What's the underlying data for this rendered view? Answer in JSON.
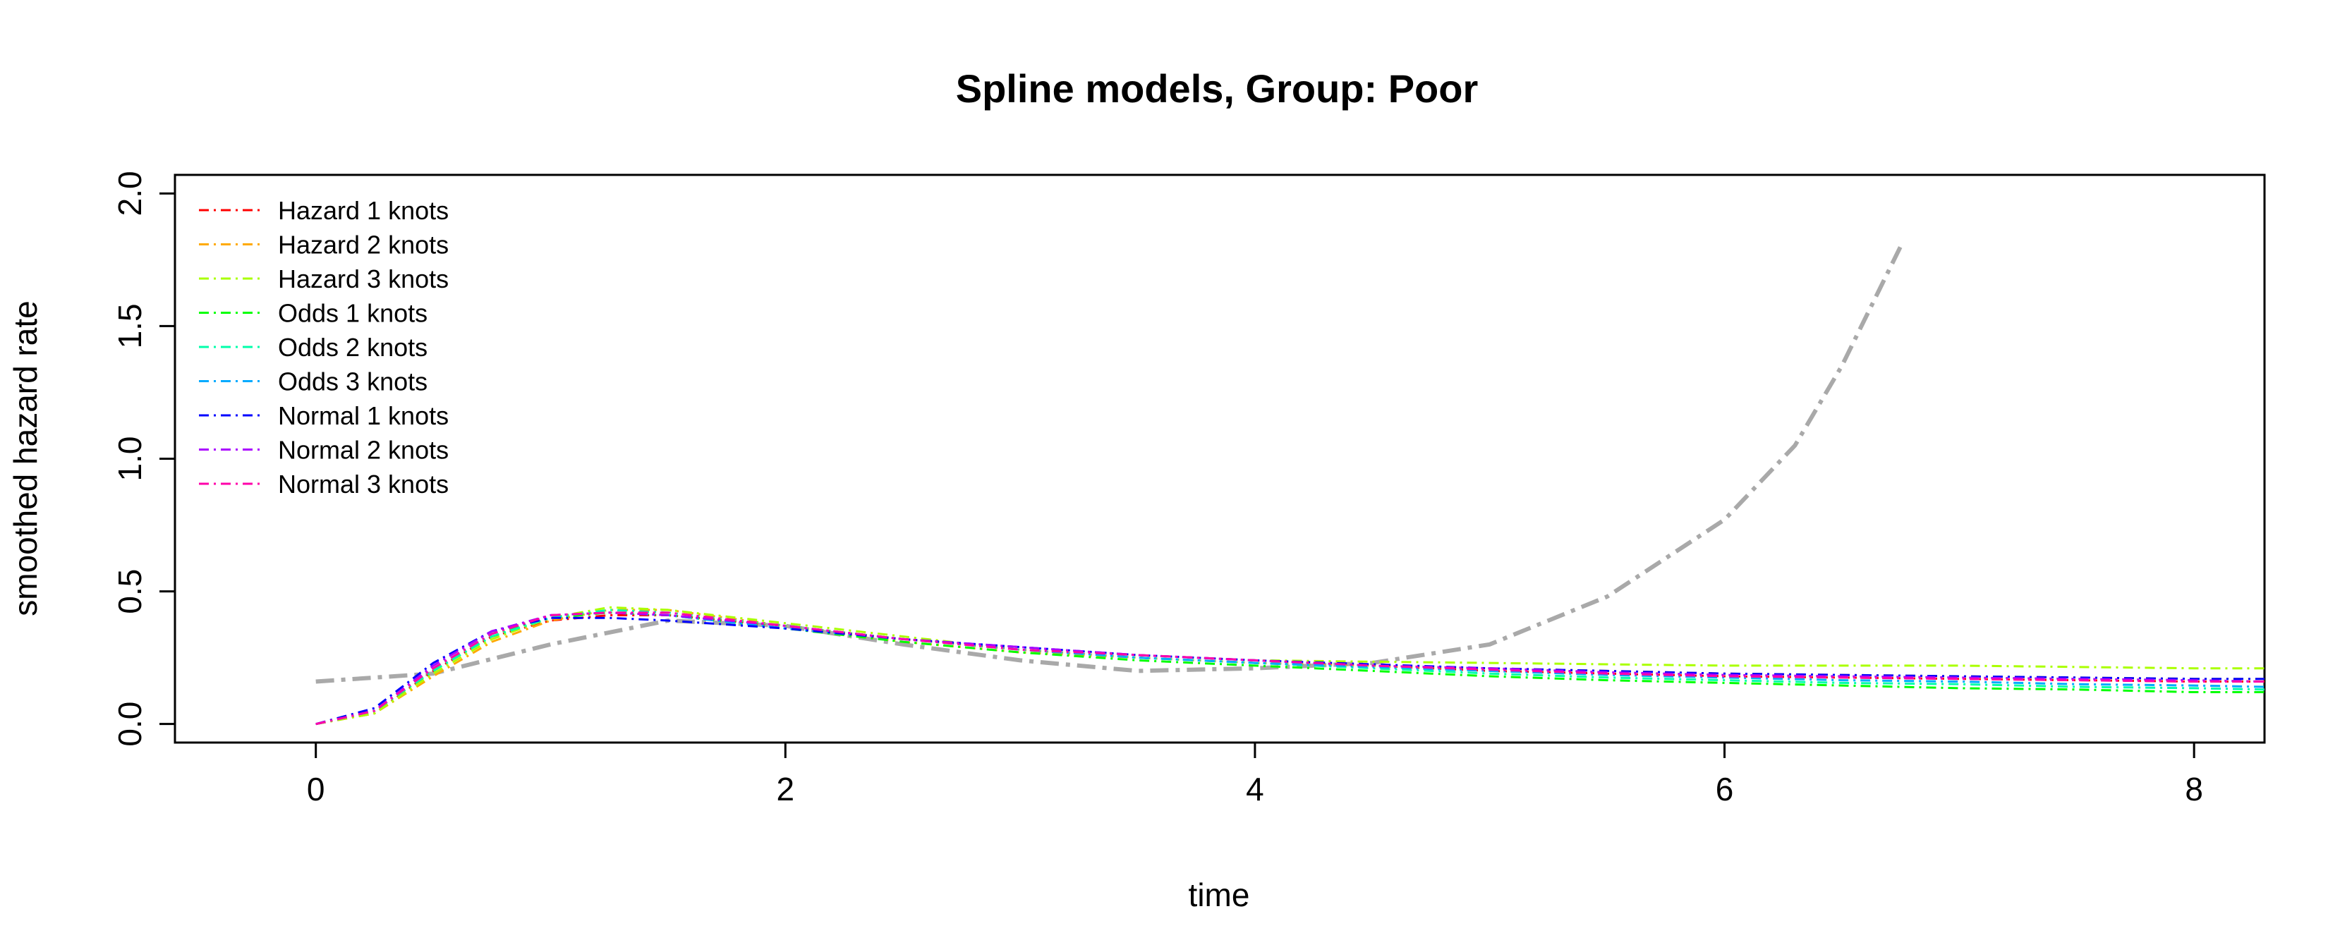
{
  "chart_data": {
    "type": "line",
    "title": "Spline models, Group: Poor",
    "xlabel": "time",
    "ylabel": "smoothed hazard rate",
    "xlim": [
      -0.6,
      8.3
    ],
    "ylim": [
      -0.07,
      2.07
    ],
    "xticks": [
      0,
      2,
      4,
      6,
      8
    ],
    "yticks": [
      0.0,
      0.5,
      1.0,
      1.5,
      2.0
    ],
    "ytick_labels": [
      "0.0",
      "0.5",
      "1.0",
      "1.5",
      "2.0"
    ],
    "grid": false,
    "legend_position": "top-left",
    "series": [
      {
        "name": "Hazard 1 knots",
        "color": "#ff0000",
        "x": [
          0,
          0.25,
          0.5,
          0.75,
          1.0,
          1.25,
          1.5,
          2.0,
          2.5,
          3.0,
          3.5,
          4.0,
          4.5,
          5.0,
          5.5,
          6.0,
          6.5,
          7.0,
          7.5,
          8.0,
          8.3
        ],
        "y": [
          0.0,
          0.04,
          0.2,
          0.33,
          0.39,
          0.41,
          0.41,
          0.37,
          0.32,
          0.28,
          0.25,
          0.23,
          0.22,
          0.2,
          0.19,
          0.18,
          0.175,
          0.17,
          0.165,
          0.16,
          0.16
        ]
      },
      {
        "name": "Hazard 2 knots",
        "color": "#ffaa00",
        "x": [
          0,
          0.25,
          0.5,
          0.75,
          1.0,
          1.25,
          1.5,
          2.0,
          2.5,
          3.0,
          3.5,
          4.0,
          4.5,
          5.0,
          5.5,
          6.0,
          6.5,
          7.0,
          7.5,
          8.0,
          8.3
        ],
        "y": [
          0.0,
          0.04,
          0.18,
          0.31,
          0.39,
          0.43,
          0.43,
          0.37,
          0.31,
          0.27,
          0.25,
          0.23,
          0.22,
          0.21,
          0.2,
          0.19,
          0.185,
          0.18,
          0.175,
          0.17,
          0.17
        ]
      },
      {
        "name": "Hazard 3 knots",
        "color": "#aaff00",
        "x": [
          0,
          0.25,
          0.5,
          0.75,
          1.0,
          1.25,
          1.5,
          2.0,
          2.5,
          3.0,
          3.5,
          4.0,
          4.5,
          5.0,
          5.5,
          6.0,
          6.5,
          7.0,
          7.5,
          8.0,
          8.3
        ],
        "y": [
          0.0,
          0.04,
          0.19,
          0.32,
          0.4,
          0.44,
          0.43,
          0.38,
          0.33,
          0.28,
          0.26,
          0.24,
          0.235,
          0.23,
          0.225,
          0.22,
          0.22,
          0.22,
          0.215,
          0.21,
          0.21
        ]
      },
      {
        "name": "Odds 1 knots",
        "color": "#00ff00",
        "x": [
          0,
          0.25,
          0.5,
          0.75,
          1.0,
          1.25,
          1.5,
          2.0,
          2.5,
          3.0,
          3.5,
          4.0,
          4.5,
          5.0,
          5.5,
          6.0,
          6.5,
          7.0,
          7.5,
          8.0,
          8.3
        ],
        "y": [
          0.0,
          0.05,
          0.21,
          0.34,
          0.4,
          0.42,
          0.41,
          0.36,
          0.31,
          0.27,
          0.24,
          0.22,
          0.2,
          0.18,
          0.165,
          0.155,
          0.145,
          0.135,
          0.13,
          0.12,
          0.12
        ]
      },
      {
        "name": "Odds 2 knots",
        "color": "#00ffaa",
        "x": [
          0,
          0.25,
          0.5,
          0.75,
          1.0,
          1.25,
          1.5,
          2.0,
          2.5,
          3.0,
          3.5,
          4.0,
          4.5,
          5.0,
          5.5,
          6.0,
          6.5,
          7.0,
          7.5,
          8.0,
          8.3
        ],
        "y": [
          0.0,
          0.05,
          0.2,
          0.33,
          0.4,
          0.43,
          0.42,
          0.37,
          0.32,
          0.28,
          0.25,
          0.23,
          0.21,
          0.19,
          0.175,
          0.165,
          0.155,
          0.15,
          0.14,
          0.135,
          0.13
        ]
      },
      {
        "name": "Odds 3 knots",
        "color": "#00aaff",
        "x": [
          0,
          0.25,
          0.5,
          0.75,
          1.0,
          1.25,
          1.5,
          2.0,
          2.5,
          3.0,
          3.5,
          4.0,
          4.5,
          5.0,
          5.5,
          6.0,
          6.5,
          7.0,
          7.5,
          8.0,
          8.3
        ],
        "y": [
          0.0,
          0.05,
          0.21,
          0.34,
          0.41,
          0.42,
          0.41,
          0.36,
          0.32,
          0.28,
          0.25,
          0.23,
          0.215,
          0.2,
          0.185,
          0.175,
          0.165,
          0.16,
          0.15,
          0.145,
          0.14
        ]
      },
      {
        "name": "Normal 1 knots",
        "color": "#0000ff",
        "x": [
          0,
          0.25,
          0.5,
          0.75,
          1.0,
          1.25,
          1.5,
          2.0,
          2.5,
          3.0,
          3.5,
          4.0,
          4.5,
          5.0,
          5.5,
          6.0,
          6.5,
          7.0,
          7.5,
          8.0,
          8.3
        ],
        "y": [
          0.0,
          0.06,
          0.23,
          0.35,
          0.4,
          0.4,
          0.39,
          0.36,
          0.32,
          0.29,
          0.26,
          0.24,
          0.225,
          0.21,
          0.2,
          0.19,
          0.185,
          0.18,
          0.175,
          0.17,
          0.17
        ]
      },
      {
        "name": "Normal 2 knots",
        "color": "#aa00ff",
        "x": [
          0,
          0.25,
          0.5,
          0.75,
          1.0,
          1.25,
          1.5,
          2.0,
          2.5,
          3.0,
          3.5,
          4.0,
          4.5,
          5.0,
          5.5,
          6.0,
          6.5,
          7.0,
          7.5,
          8.0,
          8.3
        ],
        "y": [
          0.0,
          0.05,
          0.22,
          0.35,
          0.41,
          0.42,
          0.41,
          0.37,
          0.32,
          0.29,
          0.26,
          0.24,
          0.22,
          0.21,
          0.195,
          0.185,
          0.18,
          0.175,
          0.17,
          0.165,
          0.16
        ]
      },
      {
        "name": "Normal 3 knots",
        "color": "#ff00aa",
        "x": [
          0,
          0.25,
          0.5,
          0.75,
          1.0,
          1.25,
          1.5,
          2.0,
          2.5,
          3.0,
          3.5,
          4.0,
          4.5,
          5.0,
          5.5,
          6.0,
          6.5,
          7.0,
          7.5,
          8.0,
          8.3
        ],
        "y": [
          0.0,
          0.05,
          0.21,
          0.34,
          0.41,
          0.42,
          0.42,
          0.37,
          0.32,
          0.28,
          0.26,
          0.24,
          0.22,
          0.205,
          0.19,
          0.18,
          0.175,
          0.17,
          0.165,
          0.16,
          0.16
        ]
      }
    ],
    "reference_curve": {
      "color": "#a9a9a9",
      "x": [
        0,
        0.5,
        1.0,
        1.5,
        2.0,
        2.5,
        3.0,
        3.5,
        4.0,
        4.5,
        5.0,
        5.5,
        6.0,
        6.3,
        6.5,
        6.75
      ],
      "y": [
        0.16,
        0.19,
        0.3,
        0.39,
        0.37,
        0.3,
        0.24,
        0.2,
        0.21,
        0.23,
        0.3,
        0.48,
        0.77,
        1.05,
        1.35,
        1.8
      ]
    }
  }
}
